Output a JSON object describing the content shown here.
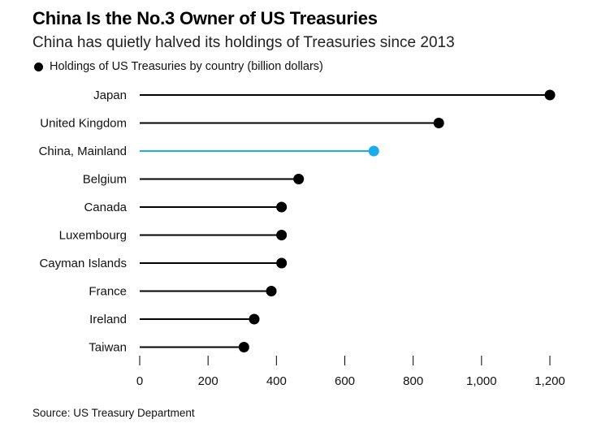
{
  "colors": {
    "default_series": "#000000",
    "highlight_series": "#1aabf0"
  },
  "chart_data": {
    "type": "lollipop",
    "title": "China Is the No.3 Owner of US Treasuries",
    "subtitle": "China has quietly halved its holdings of Treasuries since 2013",
    "legend": "Holdings of US Treasuries by country (billion dollars)",
    "source": "Source: US Treasury Department",
    "xlim": [
      0,
      1200
    ],
    "xticks": [
      0,
      200,
      400,
      600,
      800,
      1000,
      1200
    ],
    "xtick_labels": [
      "0",
      "200",
      "400",
      "600",
      "800",
      "1,000",
      "1,200"
    ],
    "categories": [
      "Japan",
      "United Kingdom",
      "China, Mainland",
      "Belgium",
      "Canada",
      "Luxembourg",
      "Cayman Islands",
      "France",
      "Ireland",
      "Taiwan"
    ],
    "values": [
      1200,
      875,
      685,
      465,
      415,
      415,
      415,
      385,
      335,
      305
    ],
    "highlight": "China, Mainland"
  }
}
